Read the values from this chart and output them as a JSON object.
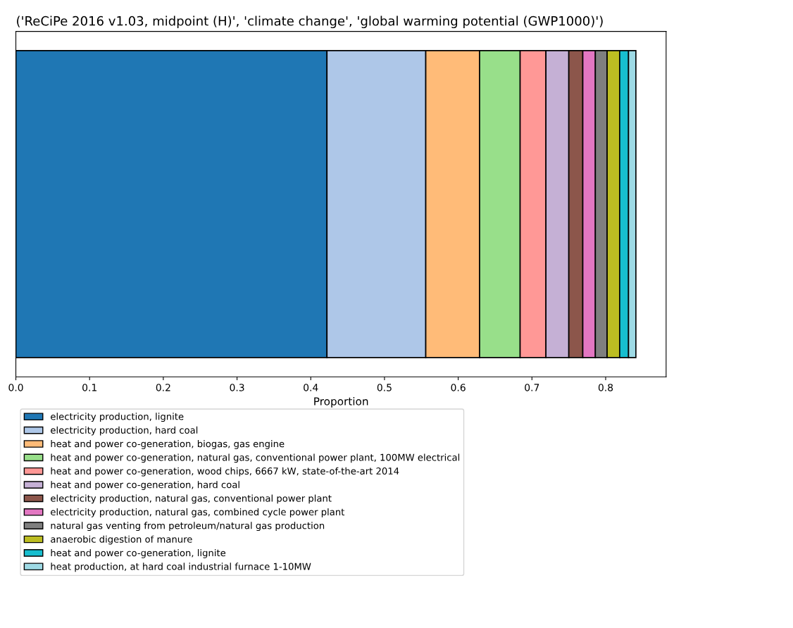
{
  "chart_data": {
    "type": "bar",
    "orientation": "horizontal",
    "stacked": true,
    "title": "('ReCiPe 2016 v1.03, midpoint (H)', 'climate change', 'global warming potential (GWP1000)')",
    "xlabel": "Proportion",
    "categories": [
      null
    ],
    "series": [
      {
        "name": "electricity production, lignite",
        "color": "#1f77b4",
        "values": [
          0.422
        ]
      },
      {
        "name": "electricity production, hard coal",
        "color": "#aec7e8",
        "values": [
          0.134
        ]
      },
      {
        "name": "heat and power co-generation, biogas, gas engine",
        "color": "#ffbb78",
        "values": [
          0.073
        ]
      },
      {
        "name": "heat and power co-generation, natural gas, conventional power plant, 100MW electrical",
        "color": "#98df8a",
        "values": [
          0.055
        ]
      },
      {
        "name": "heat and power co-generation, wood chips, 6667 kW, state-of-the-art 2014",
        "color": "#ff9896",
        "values": [
          0.035
        ]
      },
      {
        "name": "heat and power co-generation, hard coal",
        "color": "#c5b0d5",
        "values": [
          0.031
        ]
      },
      {
        "name": "electricity production, natural gas, conventional power plant",
        "color": "#8c564b",
        "values": [
          0.019
        ]
      },
      {
        "name": "electricity production, natural gas, combined cycle power plant",
        "color": "#e377c2",
        "values": [
          0.017
        ]
      },
      {
        "name": "natural gas venting from petroleum/natural gas production",
        "color": "#7f7f7f",
        "values": [
          0.016
        ]
      },
      {
        "name": "anaerobic digestion of manure",
        "color": "#bcbd22",
        "values": [
          0.017
        ]
      },
      {
        "name": "heat and power co-generation, lignite",
        "color": "#17becf",
        "values": [
          0.012
        ]
      },
      {
        "name": "heat production, at hard coal industrial furnace 1-10MW",
        "color": "#9edae5",
        "values": [
          0.01
        ]
      }
    ],
    "xlim": [
      0,
      0.882
    ],
    "xticks": [
      {
        "value": 0,
        "label": "0.0"
      },
      0.1,
      0.2,
      0.3,
      0.4,
      0.5,
      0.6,
      0.7,
      0.8
    ],
    "tick_labels": "x",
    "grid": false,
    "legend": "bottom"
  }
}
